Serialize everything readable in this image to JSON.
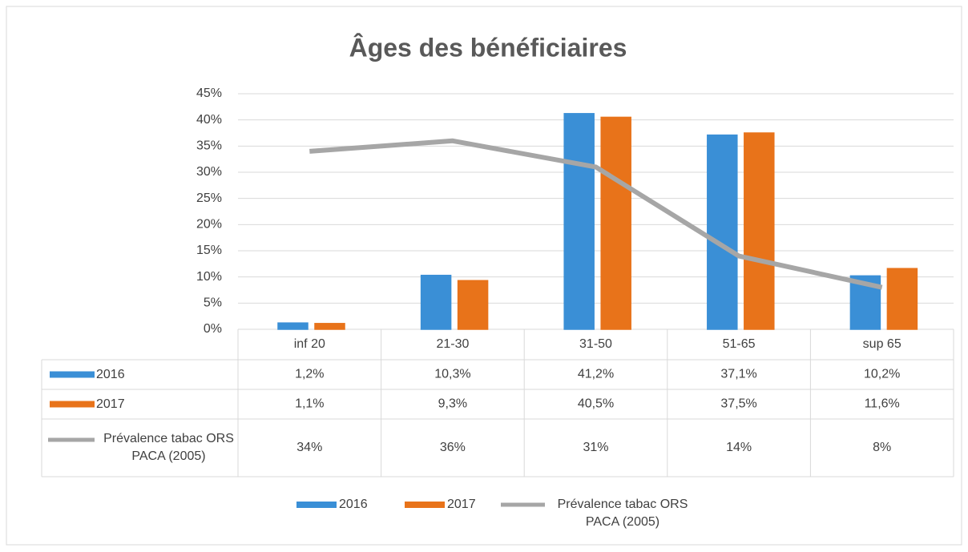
{
  "chart_data": {
    "type": "bar",
    "title": "Âges des bénéficiaires",
    "categories": [
      "inf 20",
      "21-30",
      "31-50",
      "51-65",
      "sup 65"
    ],
    "series": [
      {
        "name": "2016",
        "type": "bar",
        "color": "#3a8fd6",
        "values": [
          1.2,
          10.3,
          41.2,
          37.1,
          10.2
        ],
        "value_labels": [
          "1,2%",
          "10,3%",
          "41,2%",
          "37,1%",
          "10,2%"
        ]
      },
      {
        "name": "2017",
        "type": "bar",
        "color": "#e8731a",
        "values": [
          1.1,
          9.3,
          40.5,
          37.5,
          11.6
        ],
        "value_labels": [
          "1,1%",
          "9,3%",
          "40,5%",
          "37,5%",
          "11,6%"
        ]
      },
      {
        "name": "Prévalence tabac ORS PACA (2005)",
        "type": "line",
        "color": "#a6a6a6",
        "values": [
          34,
          36,
          31,
          14,
          8
        ],
        "value_labels": [
          "34%",
          "36%",
          "31%",
          "14%",
          "8%"
        ]
      }
    ],
    "ylim": [
      0,
      45
    ],
    "yticks": [
      {
        "value": 0,
        "label": "0%"
      },
      {
        "value": 5,
        "label": "5%"
      },
      {
        "value": 10,
        "label": "10%"
      },
      {
        "value": 15,
        "label": "15%"
      },
      {
        "value": 20,
        "label": "20%"
      },
      {
        "value": 25,
        "label": "25%"
      },
      {
        "value": 30,
        "label": "30%"
      },
      {
        "value": 35,
        "label": "35%"
      },
      {
        "value": 40,
        "label": "40%"
      },
      {
        "value": 45,
        "label": "45%"
      }
    ],
    "grid": true
  }
}
